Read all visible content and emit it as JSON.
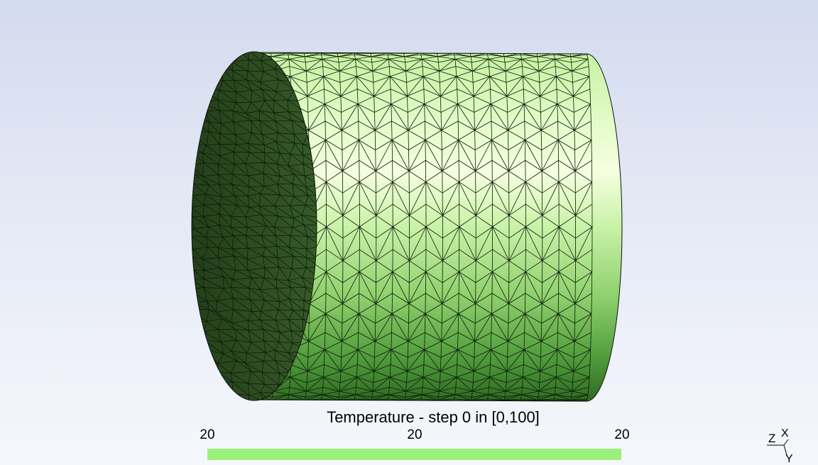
{
  "view": {
    "background_top": "#d3dbef",
    "background_bottom": "#f6f7fc",
    "mesh_colors": {
      "highlight": "#f5ffe0",
      "light": "#c4f3a2",
      "mid": "#7fc95f",
      "dark": "#2f6b22",
      "end_cap": "#2e4f22",
      "edges": "#0b1a08"
    }
  },
  "scale": {
    "title": "Temperature - step 0 in [0,100]",
    "tick_min": "20",
    "tick_mid": "20",
    "tick_max": "20",
    "bar_color": "#9af07a"
  },
  "axes": {
    "x_label": "X",
    "y_label": "Y",
    "z_label": "Z"
  }
}
